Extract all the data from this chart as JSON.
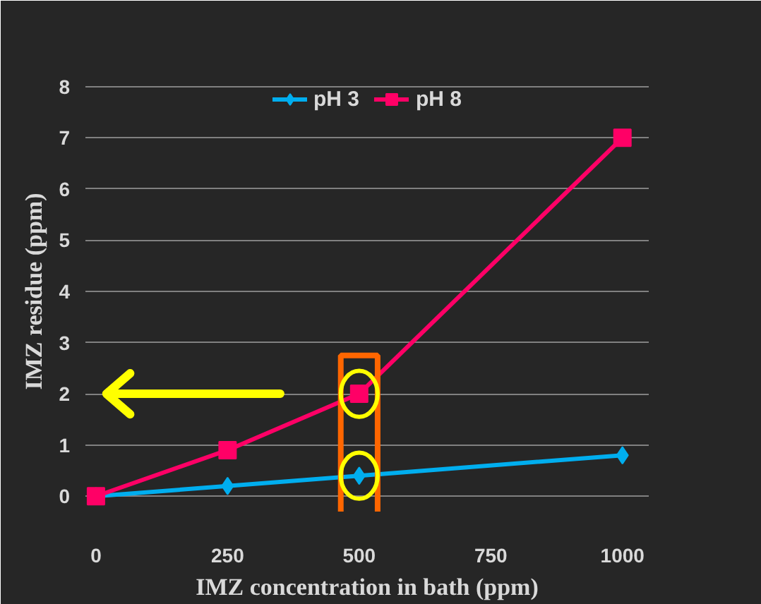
{
  "chart_data": {
    "type": "line",
    "xlabel": "IMZ concentration in bath (ppm)",
    "ylabel": "IMZ residue (ppm)",
    "xlim": [
      -20,
      1050
    ],
    "xticks": [
      0,
      250,
      500,
      750,
      1000
    ],
    "ylim": [
      -0.3,
      8.3
    ],
    "yticks": [
      0,
      1,
      2,
      3,
      4,
      5,
      6,
      7,
      8
    ],
    "grid": "y",
    "ref_lines": [
      {
        "axis": "y",
        "value": 2,
        "color": "#ffff00"
      }
    ],
    "legend": "top",
    "series": [
      {
        "name": "pH 3",
        "color": "#00aeef",
        "marker": "diamond",
        "x": [
          0,
          250,
          500,
          1000
        ],
        "values": [
          0,
          0.2,
          0.4,
          0.8
        ]
      },
      {
        "name": "pH 8",
        "color": "#ff0066",
        "marker": "square",
        "x": [
          0,
          250,
          500,
          1000
        ],
        "values": [
          0,
          0.9,
          2.0,
          7.0
        ]
      }
    ]
  }
}
